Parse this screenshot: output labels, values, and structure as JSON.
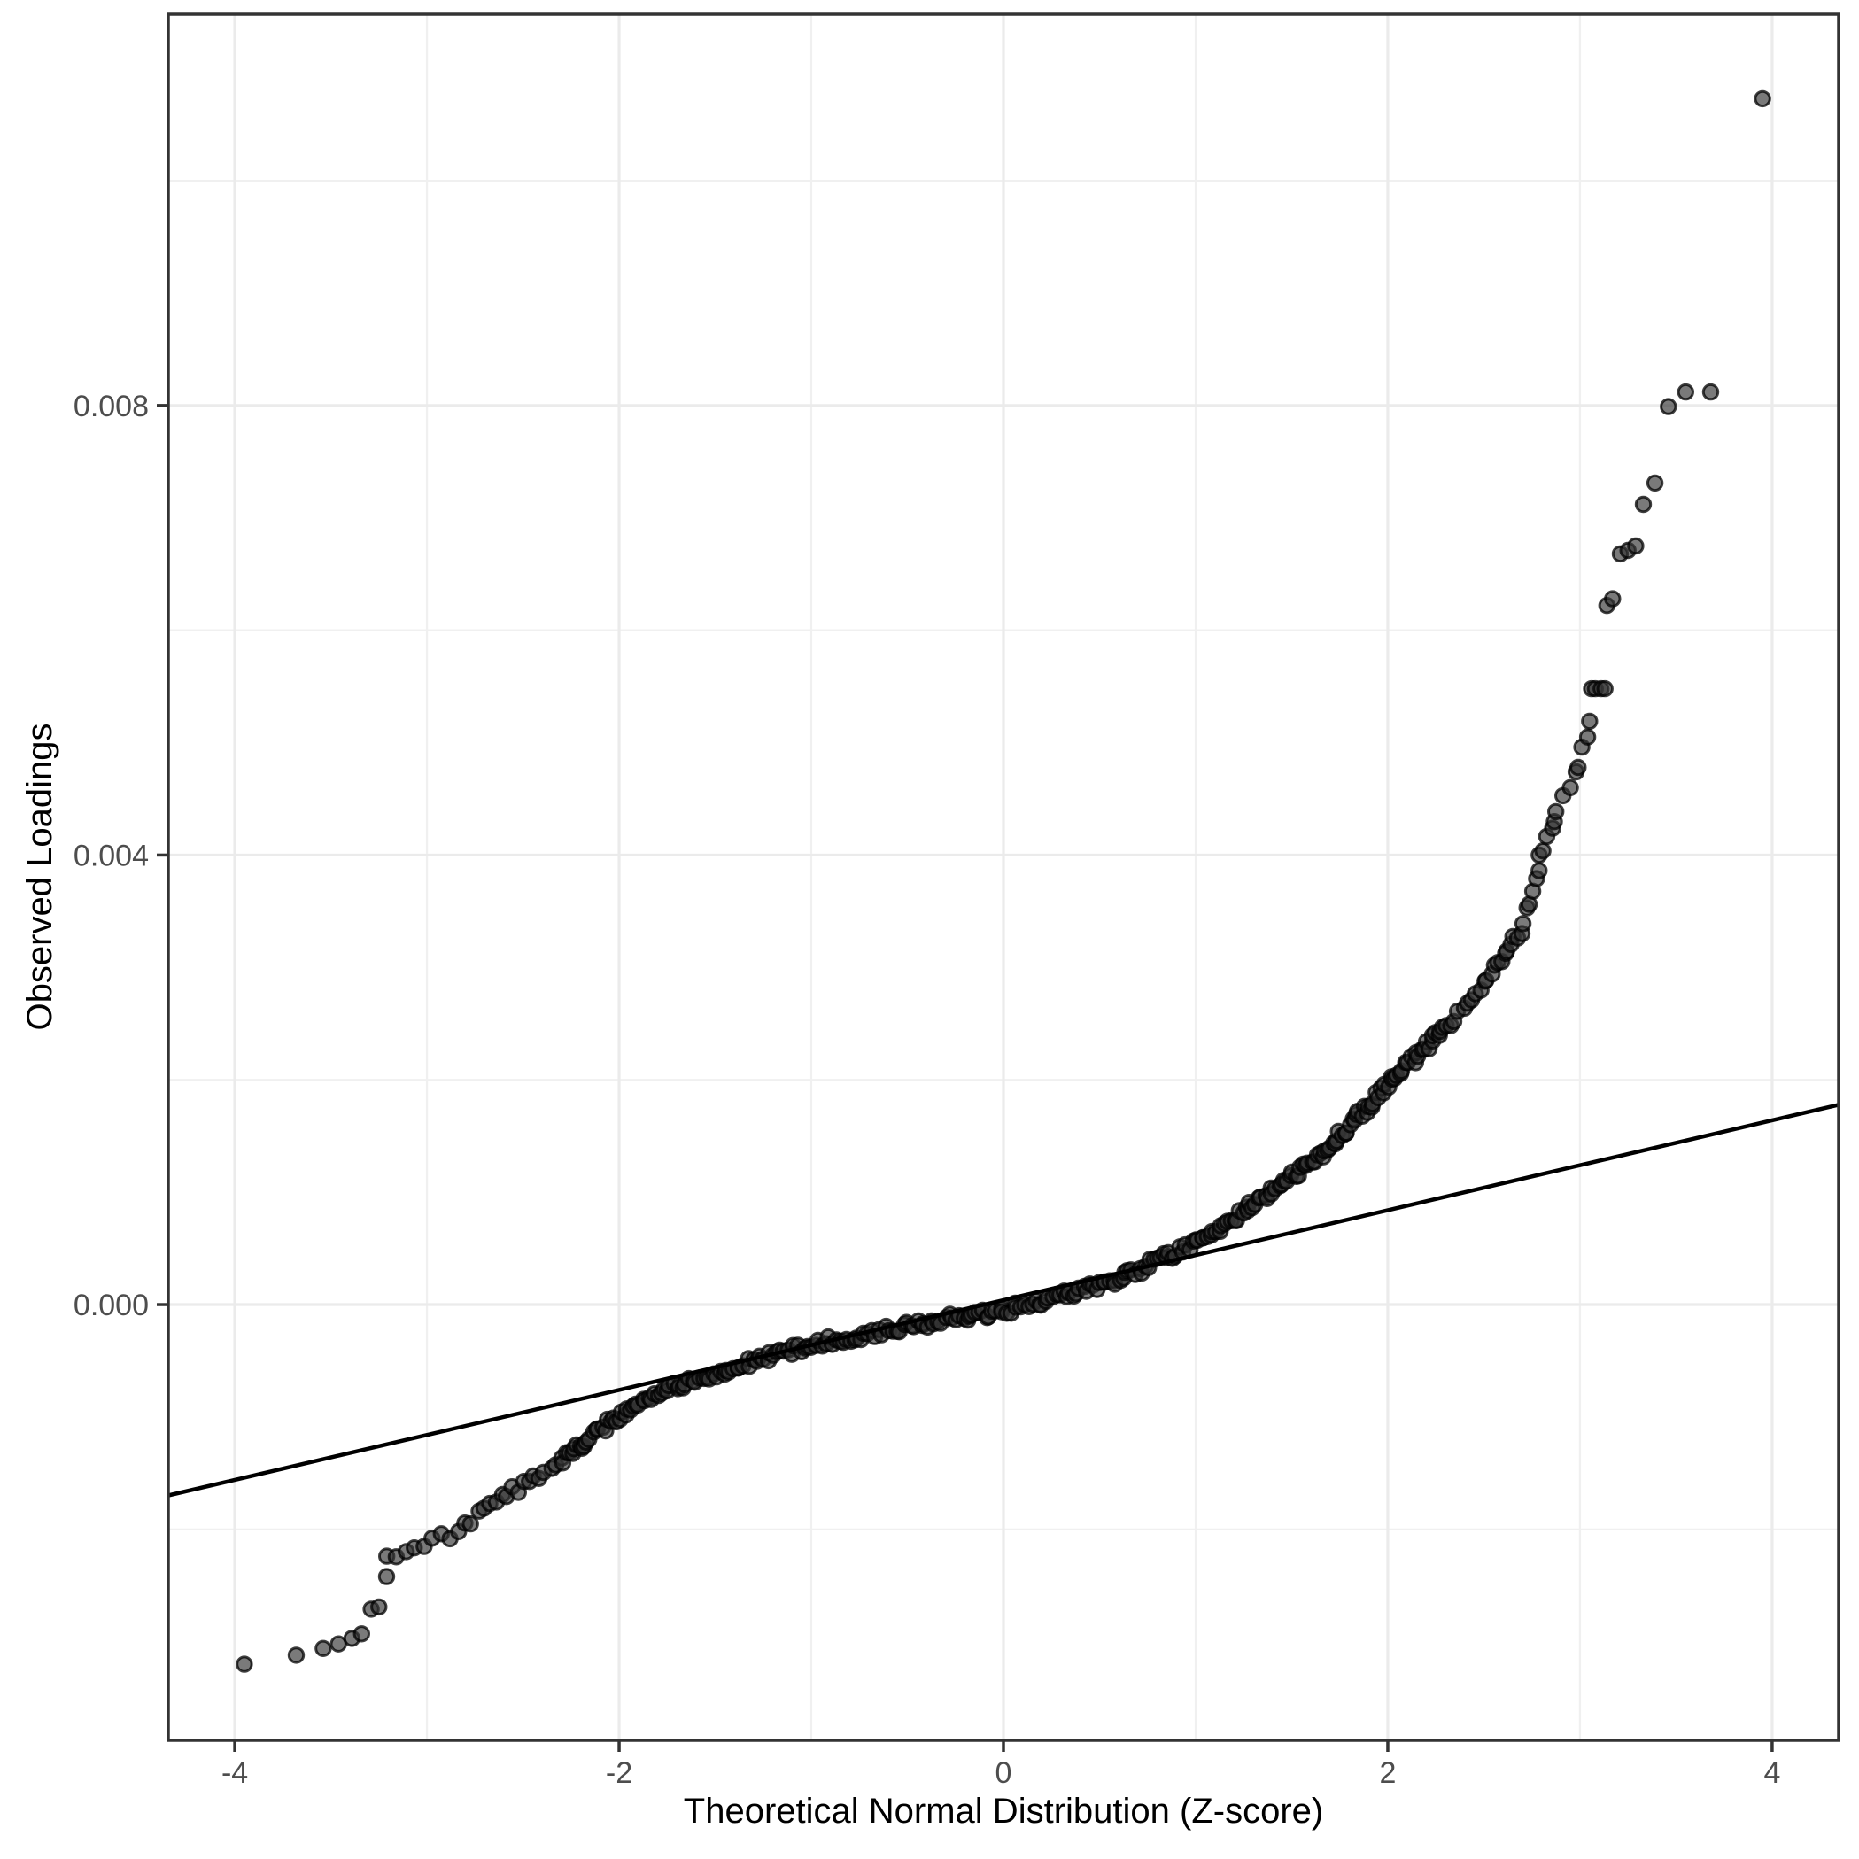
{
  "figure": {
    "background": "#ffffff"
  },
  "chart_data": {
    "type": "scatter",
    "subtype": "qq-plot",
    "title": "",
    "xlabel": "Theoretical Normal Distribution (Z-score)",
    "ylabel": "Observed Loadings",
    "xlim": [
      -4.346,
      4.346
    ],
    "ylim": [
      -0.003877,
      0.011482
    ],
    "x_ticks": [
      -4,
      -2,
      0,
      2,
      4
    ],
    "x_tick_labels": [
      "-4",
      "-2",
      "0",
      "2",
      "4"
    ],
    "x_minor_ticks": [
      -3,
      -1,
      1,
      3
    ],
    "y_ticks": [
      0.0,
      0.004,
      0.008
    ],
    "y_tick_labels": [
      "0.000",
      "0.004",
      "0.008"
    ],
    "y_minor_ticks": [
      -0.002,
      0.002,
      0.006,
      0.01
    ],
    "grid": "on",
    "legend": "none",
    "reference_line": {
      "intercept": 4e-05,
      "slope": 0.0004
    },
    "dense_band_centerline": [
      [
        -3.2,
        -0.00228
      ],
      [
        -3.07,
        -0.00215
      ],
      [
        -2.83,
        -0.00203
      ],
      [
        -2.7,
        -0.00181
      ],
      [
        -2.5,
        -0.0016
      ],
      [
        -2.3,
        -0.00139
      ],
      [
        -2.15,
        -0.00118
      ],
      [
        -2.0,
        -0.00098
      ],
      [
        -1.85,
        -0.00082
      ],
      [
        -1.72,
        -0.00072
      ],
      [
        -1.53,
        -0.00064
      ],
      [
        -1.3,
        -0.0005
      ],
      [
        -1.0,
        -0.00035
      ],
      [
        -0.61,
        -0.00023
      ],
      [
        -0.23,
        -0.00011
      ],
      [
        0.0,
        -5e-05
      ],
      [
        0.31,
        8e-05
      ],
      [
        0.62,
        0.00024
      ],
      [
        0.77,
        0.00036
      ],
      [
        0.86,
        0.00044
      ],
      [
        1.0,
        0.00055
      ],
      [
        1.23,
        0.0008
      ],
      [
        1.46,
        0.00109
      ],
      [
        1.69,
        0.00139
      ],
      [
        1.85,
        0.00168
      ],
      [
        2.01,
        0.00199
      ],
      [
        2.15,
        0.00221
      ],
      [
        2.3,
        0.00247
      ],
      [
        2.46,
        0.00276
      ],
      [
        2.61,
        0.00312
      ],
      [
        2.69,
        0.00333
      ],
      [
        2.74,
        0.0036
      ],
      [
        2.77,
        0.0038
      ],
      [
        2.8,
        0.00404
      ],
      [
        2.85,
        0.00422
      ],
      [
        2.88,
        0.00442
      ],
      [
        2.92,
        0.00452
      ],
      [
        2.95,
        0.0046
      ]
    ],
    "lower_tail_points": [
      [
        -3.95,
        -0.0032
      ],
      [
        -3.68,
        -0.00312
      ],
      [
        -3.54,
        -0.00306
      ],
      [
        -3.46,
        -0.00302
      ],
      [
        -3.39,
        -0.00297
      ],
      [
        -3.34,
        -0.00293
      ],
      [
        -3.29,
        -0.00271
      ],
      [
        -3.25,
        -0.00269
      ],
      [
        -3.21,
        -0.00242
      ]
    ],
    "upper_tail_points": [
      [
        2.98,
        0.00474
      ],
      [
        2.99,
        0.00478
      ],
      [
        3.01,
        0.00496
      ],
      [
        3.04,
        0.00505
      ],
      [
        3.05,
        0.00519
      ],
      [
        3.06,
        0.00548
      ],
      [
        3.08,
        0.00548
      ],
      [
        3.11,
        0.00548
      ],
      [
        3.13,
        0.00548
      ],
      [
        3.14,
        0.00622
      ],
      [
        3.17,
        0.00628
      ],
      [
        3.21,
        0.00668
      ],
      [
        3.25,
        0.00671
      ],
      [
        3.29,
        0.00675
      ],
      [
        3.33,
        0.00712
      ],
      [
        3.39,
        0.00731
      ],
      [
        3.46,
        0.00799
      ],
      [
        3.55,
        0.00812
      ],
      [
        3.68,
        0.00812
      ],
      [
        3.95,
        0.01073
      ]
    ],
    "point_style": {
      "fill": "#333333",
      "fill_opacity": 0.65,
      "stroke": "#000000",
      "stroke_opacity": 0.75,
      "radius_px": 8.2,
      "stroke_width_px": 3
    },
    "colors": {
      "grid_major": "#ebebeb",
      "grid_minor": "#f0f0f0",
      "panel_border": "#333333",
      "tick_mark": "#333333",
      "tick_label": "#4d4d4d",
      "axis_title": "#000000",
      "reference_line": "#000000",
      "background": "#ffffff"
    }
  }
}
